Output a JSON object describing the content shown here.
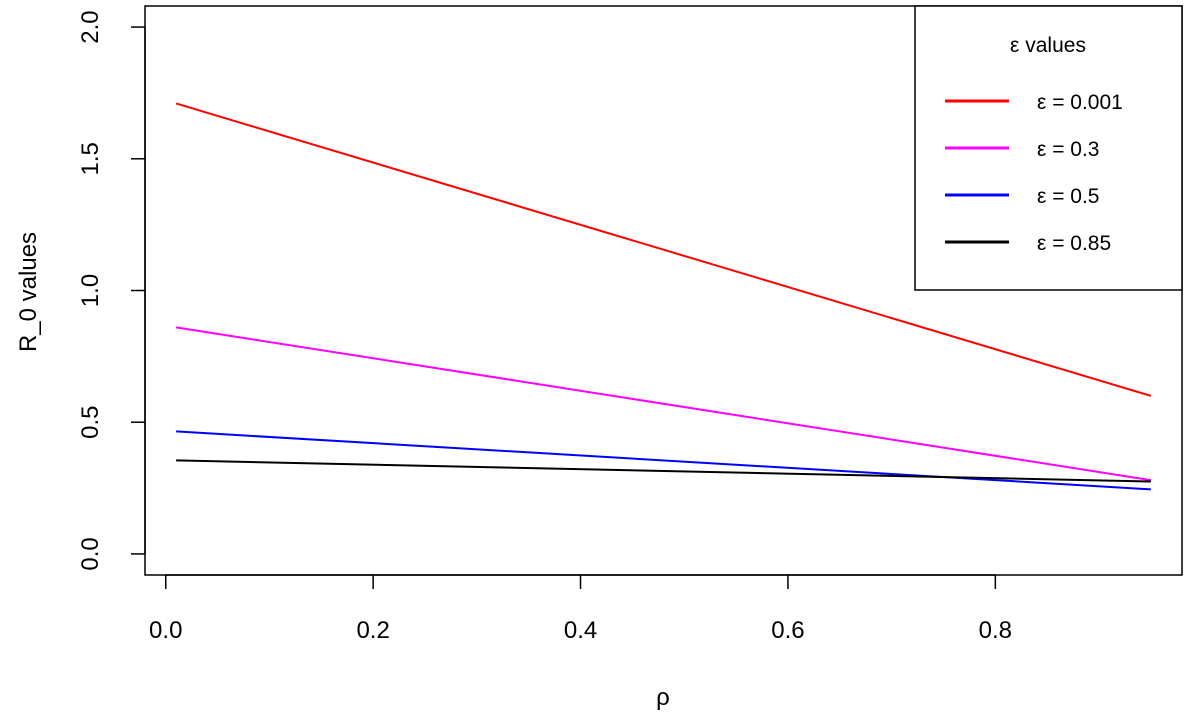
{
  "chart_data": {
    "type": "line",
    "title": "",
    "xlabel": "ρ",
    "ylabel": "R_0 values",
    "xlim": [
      -0.02,
      0.98
    ],
    "ylim": [
      -0.08,
      2.08
    ],
    "xticks": [
      0.0,
      0.2,
      0.4,
      0.6,
      0.8
    ],
    "xtick_labels": [
      "0.0",
      "0.2",
      "0.4",
      "0.6",
      "0.8"
    ],
    "yticks": [
      0.0,
      0.5,
      1.0,
      1.5,
      2.0
    ],
    "ytick_labels": [
      "0.0",
      "0.5",
      "1.0",
      "1.5",
      "2.0"
    ],
    "grid": false,
    "legend": {
      "title": "ε values",
      "position": "top-right"
    },
    "series": [
      {
        "name": "ε = 0.001",
        "color": "#ff0000",
        "x": [
          0.01,
          0.95
        ],
        "y": [
          1.71,
          0.6
        ]
      },
      {
        "name": "ε = 0.3",
        "color": "#ff00ff",
        "x": [
          0.01,
          0.95
        ],
        "y": [
          0.86,
          0.28
        ]
      },
      {
        "name": "ε = 0.5",
        "color": "#0000ff",
        "x": [
          0.01,
          0.95
        ],
        "y": [
          0.465,
          0.245
        ]
      },
      {
        "name": "ε = 0.85",
        "color": "#000000",
        "x": [
          0.01,
          0.95
        ],
        "y": [
          0.355,
          0.275
        ]
      }
    ]
  }
}
